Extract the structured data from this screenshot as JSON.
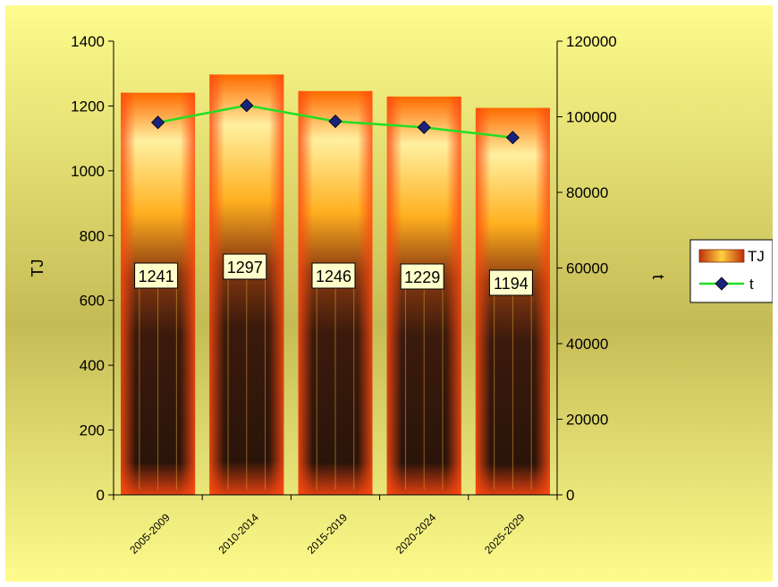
{
  "chart_data": {
    "type": "bar",
    "categories": [
      "2005-2009",
      "2010-2014",
      "2015-2019",
      "2020-2024",
      "2025-2029"
    ],
    "series": [
      {
        "name": "TJ",
        "type": "bar",
        "axis": "left",
        "values": [
          1241,
          1297,
          1246,
          1229,
          1194
        ]
      },
      {
        "name": "t",
        "type": "line",
        "axis": "right",
        "values": [
          98500,
          103000,
          98800,
          97200,
          94500
        ]
      }
    ],
    "data_labels": [
      "1241",
      "1297",
      "1246",
      "1229",
      "1194"
    ],
    "ylabel": "TJ",
    "y2label": "t",
    "ylim": [
      0,
      1400
    ],
    "y2lim": [
      0,
      120000
    ],
    "yticks": [
      "0",
      "200",
      "400",
      "600",
      "800",
      "1000",
      "1200",
      "1400"
    ],
    "y2ticks": [
      "0",
      "20000",
      "40000",
      "60000",
      "80000",
      "100000",
      "120000"
    ],
    "legend": [
      "TJ",
      "t"
    ],
    "legend_position": "right",
    "grid": false,
    "colors": {
      "line": "#22dd22",
      "marker": "#1a237e",
      "label_bg": "#ffffcc",
      "background_top": "#fdfc8c",
      "background_mid": "#c5bb55"
    }
  }
}
